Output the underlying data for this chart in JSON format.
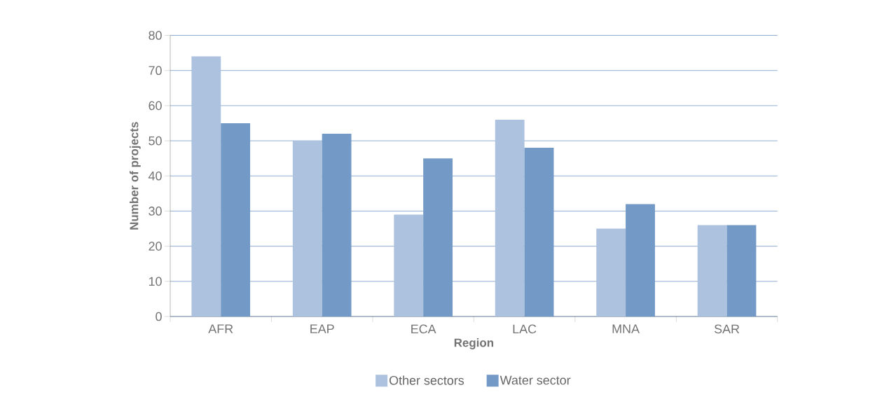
{
  "chart_data": {
    "type": "bar",
    "xlabel": "Region",
    "ylabel": "Number of projects",
    "categories": [
      "AFR",
      "EAP",
      "ECA",
      "LAC",
      "MNA",
      "SAR"
    ],
    "series": [
      {
        "name": "Other sectors",
        "color": "#adc2de",
        "values": [
          74,
          50,
          29,
          56,
          25,
          26
        ]
      },
      {
        "name": "Water sector",
        "color": "#7399c6",
        "values": [
          55,
          52,
          45,
          48,
          32,
          26
        ]
      }
    ],
    "ylim": [
      0,
      80
    ],
    "yticks": [
      0,
      10,
      20,
      30,
      40,
      50,
      60,
      70,
      80
    ],
    "grid": "y",
    "legend": "bottom"
  }
}
